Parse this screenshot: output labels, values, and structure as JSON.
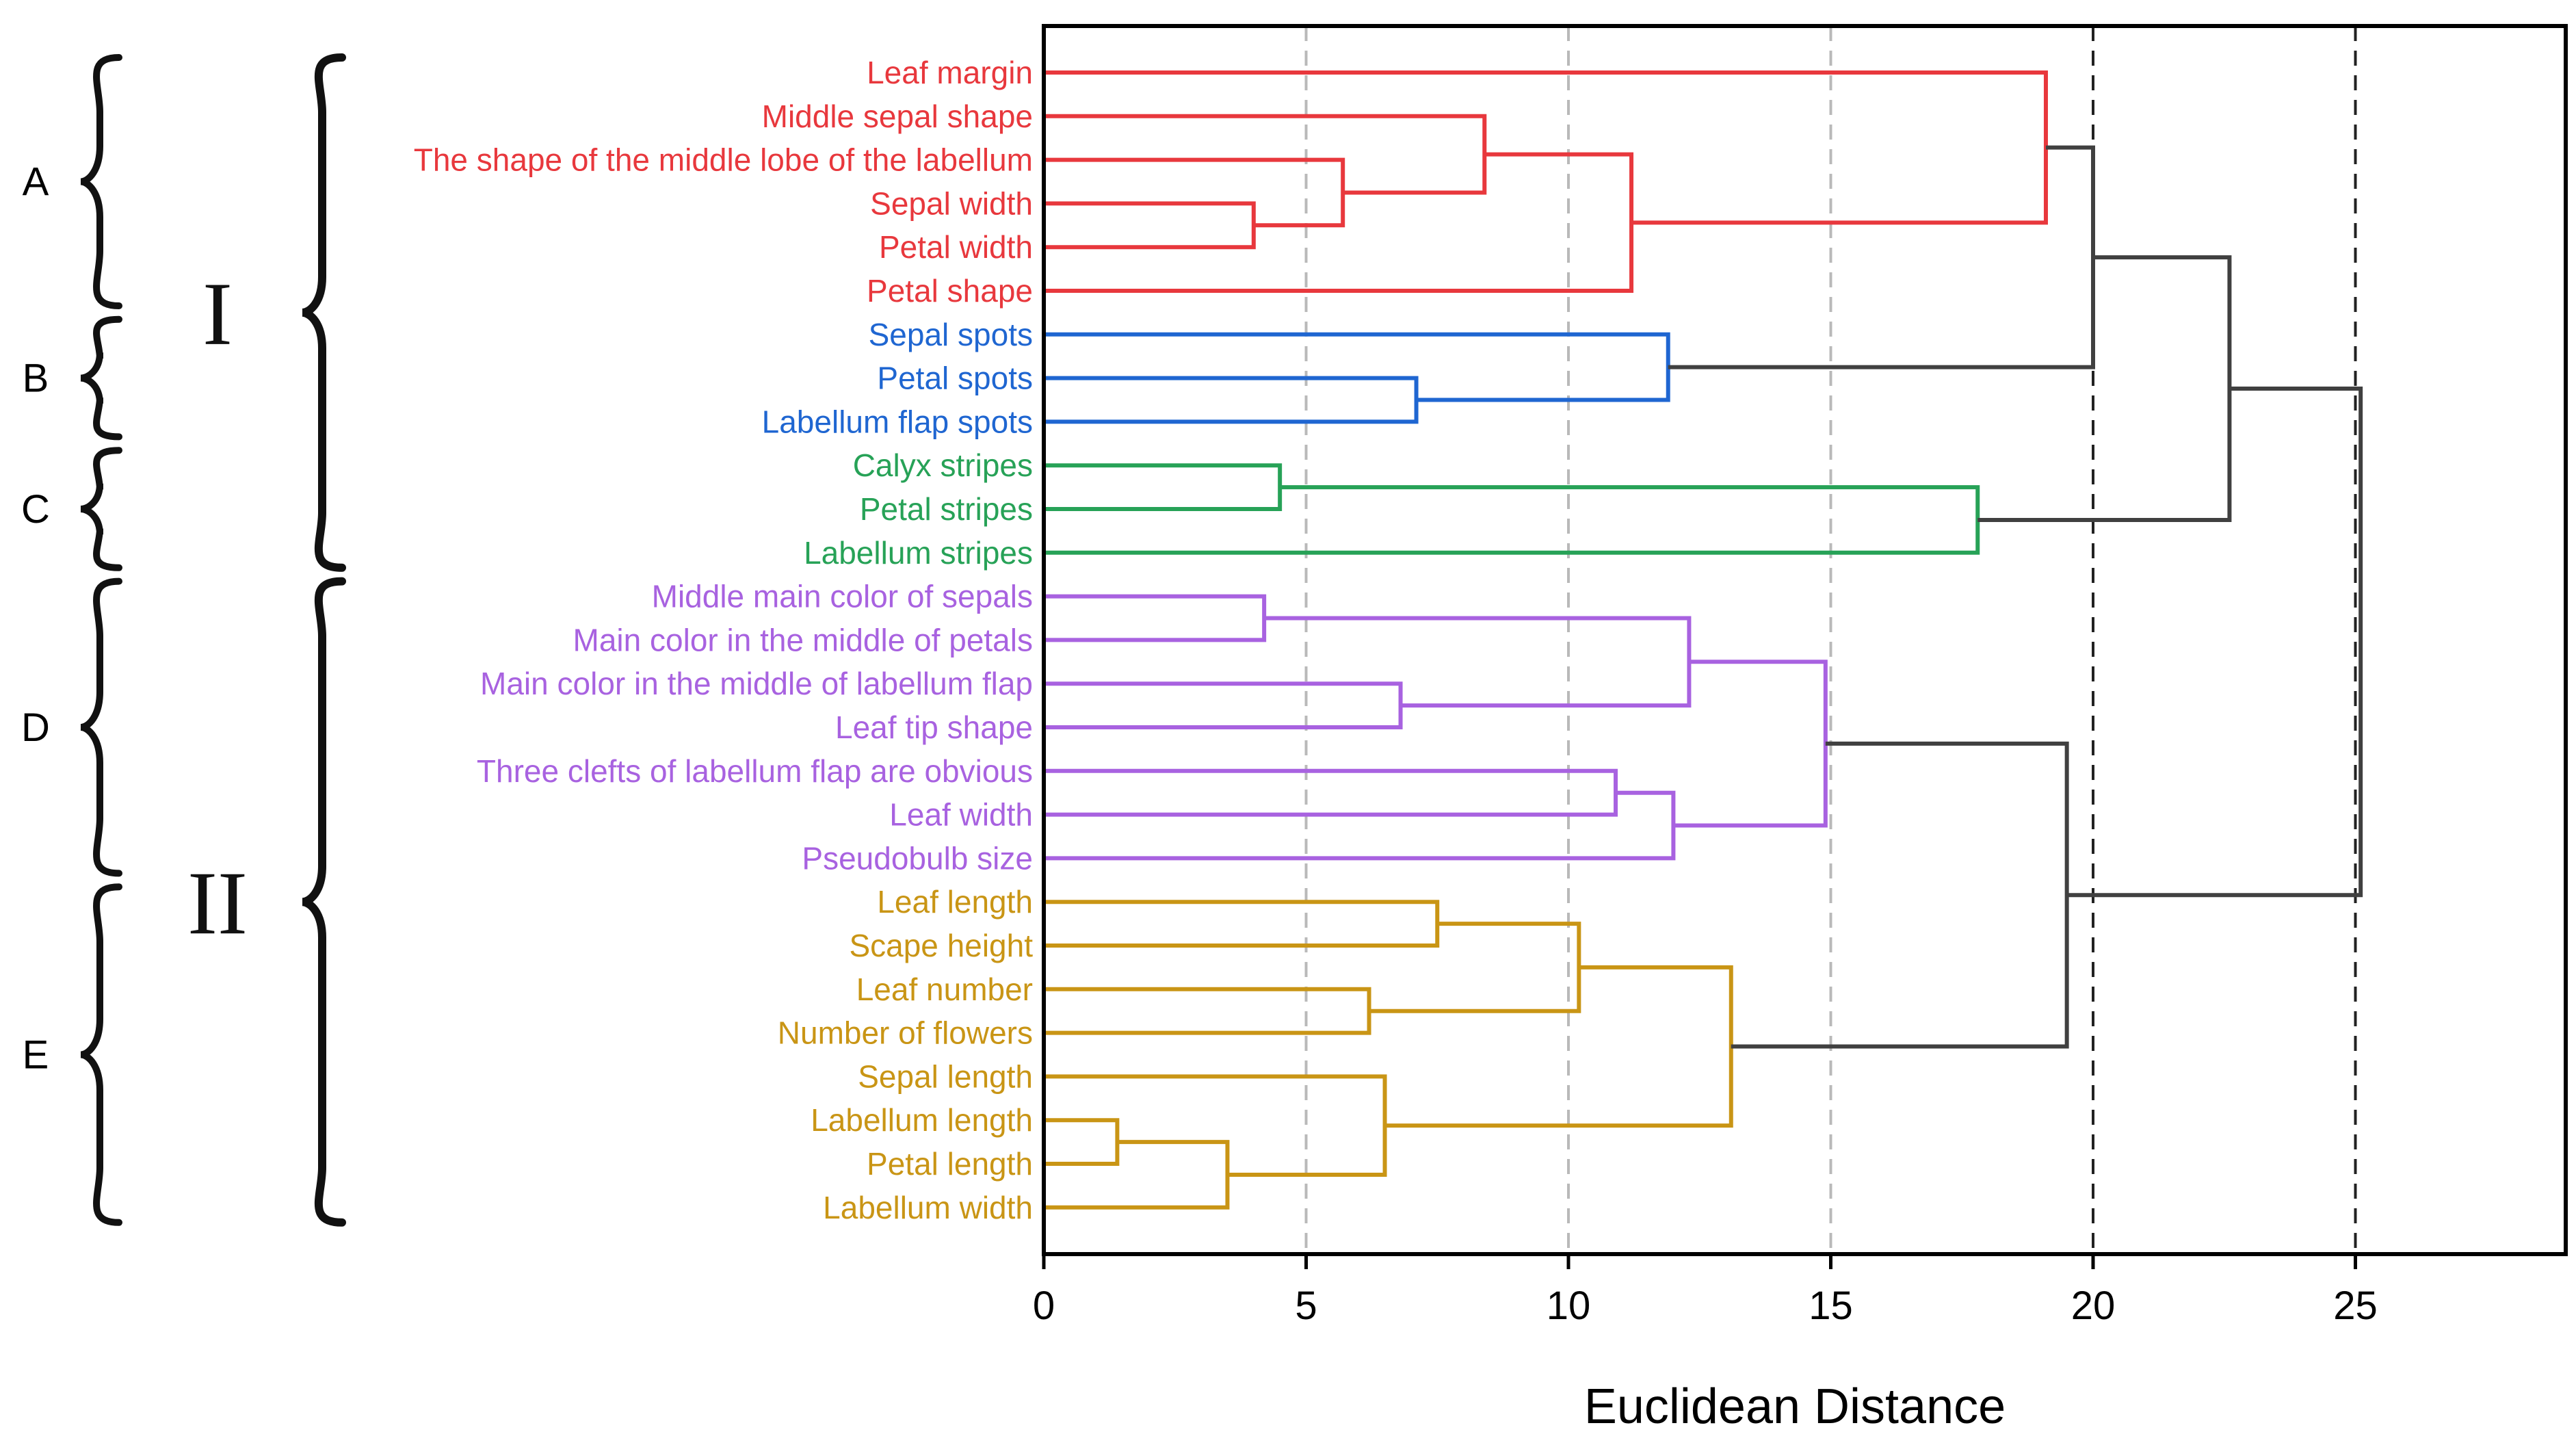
{
  "chart_data": {
    "type": "dendrogram",
    "xlabel": "Euclidean Distance",
    "xlim": [
      0,
      29
    ],
    "xticks": [
      0,
      5,
      10,
      15,
      20,
      25
    ],
    "grid_lines": [
      {
        "x": 5,
        "style": "dashed-gray"
      },
      {
        "x": 10,
        "style": "dashed-gray"
      },
      {
        "x": 15,
        "style": "dashed-gray"
      },
      {
        "x": 20,
        "style": "dashed-black"
      },
      {
        "x": 25,
        "style": "dashed-black"
      }
    ],
    "cluster_colors": {
      "A": "#e8383d",
      "B": "#1f66d1",
      "C": "#27a257",
      "D": "#a862e0",
      "E": "#c99515",
      "link": "#404040"
    },
    "leaves": [
      {
        "label": "Leaf margin",
        "cluster": "A"
      },
      {
        "label": "Middle sepal shape",
        "cluster": "A"
      },
      {
        "label": "The shape of the middle lobe of the labellum",
        "cluster": "A"
      },
      {
        "label": "Sepal width",
        "cluster": "A"
      },
      {
        "label": "Petal width",
        "cluster": "A"
      },
      {
        "label": "Petal shape",
        "cluster": "A"
      },
      {
        "label": "Sepal spots",
        "cluster": "B"
      },
      {
        "label": "Petal spots",
        "cluster": "B"
      },
      {
        "label": "Labellum flap spots",
        "cluster": "B"
      },
      {
        "label": "Calyx stripes",
        "cluster": "C"
      },
      {
        "label": "Petal stripes",
        "cluster": "C"
      },
      {
        "label": "Labellum stripes",
        "cluster": "C"
      },
      {
        "label": "Middle main color of sepals",
        "cluster": "D"
      },
      {
        "label": "Main color in the middle of petals",
        "cluster": "D"
      },
      {
        "label": "Main color in the middle of labellum flap",
        "cluster": "D"
      },
      {
        "label": "Leaf tip shape",
        "cluster": "D"
      },
      {
        "label": "Three clefts of labellum flap are obvious",
        "cluster": "D"
      },
      {
        "label": "Leaf width",
        "cluster": "D"
      },
      {
        "label": "Pseudobulb size",
        "cluster": "D"
      },
      {
        "label": "Leaf length",
        "cluster": "E"
      },
      {
        "label": "Scape height",
        "cluster": "E"
      },
      {
        "label": "Leaf number",
        "cluster": "E"
      },
      {
        "label": "Number of flowers",
        "cluster": "E"
      },
      {
        "label": "Sepal length",
        "cluster": "E"
      },
      {
        "label": "Labellum length",
        "cluster": "E"
      },
      {
        "label": "Petal length",
        "cluster": "E"
      },
      {
        "label": "Labellum width",
        "cluster": "E"
      }
    ],
    "merges": [
      {
        "id": "A1",
        "a": 3,
        "b": 4,
        "height": 4.0,
        "color": "A"
      },
      {
        "id": "A2",
        "a": 2,
        "b": "A1",
        "height": 5.7,
        "color": "A"
      },
      {
        "id": "A3",
        "a": 1,
        "b": "A2",
        "height": 8.4,
        "color": "A"
      },
      {
        "id": "A4",
        "a": "A3",
        "b": 5,
        "height": 11.2,
        "color": "A"
      },
      {
        "id": "A5",
        "a": 0,
        "b": "A4",
        "height": 19.1,
        "color": "A"
      },
      {
        "id": "B1",
        "a": 7,
        "b": 8,
        "height": 7.1,
        "color": "B"
      },
      {
        "id": "B2",
        "a": 6,
        "b": "B1",
        "height": 11.9,
        "color": "B"
      },
      {
        "id": "C1",
        "a": 9,
        "b": 10,
        "height": 4.5,
        "color": "C"
      },
      {
        "id": "C2",
        "a": "C1",
        "b": 11,
        "height": 17.8,
        "color": "C"
      },
      {
        "id": "L1",
        "a": "A5",
        "b": "B2",
        "height": 20.0,
        "color": "link"
      },
      {
        "id": "L2",
        "a": "L1",
        "b": "C2",
        "height": 22.6,
        "color": "link"
      },
      {
        "id": "D1",
        "a": 12,
        "b": 13,
        "height": 4.2,
        "color": "D"
      },
      {
        "id": "D2",
        "a": 14,
        "b": 15,
        "height": 6.8,
        "color": "D"
      },
      {
        "id": "D3",
        "a": "D1",
        "b": "D2",
        "height": 12.3,
        "color": "D"
      },
      {
        "id": "D4",
        "a": 16,
        "b": 17,
        "height": 10.9,
        "color": "D"
      },
      {
        "id": "D5",
        "a": "D4",
        "b": 18,
        "height": 12.0,
        "color": "D"
      },
      {
        "id": "D6",
        "a": "D3",
        "b": "D5",
        "height": 14.9,
        "color": "D"
      },
      {
        "id": "E1",
        "a": 19,
        "b": 20,
        "height": 7.5,
        "color": "E"
      },
      {
        "id": "E2",
        "a": 21,
        "b": 22,
        "height": 6.2,
        "color": "E"
      },
      {
        "id": "E3",
        "a": "E1",
        "b": "E2",
        "height": 10.2,
        "color": "E"
      },
      {
        "id": "E4",
        "a": 24,
        "b": 25,
        "height": 1.4,
        "color": "E"
      },
      {
        "id": "E5",
        "a": "E4",
        "b": 26,
        "height": 3.5,
        "color": "E"
      },
      {
        "id": "E6",
        "a": 23,
        "b": "E5",
        "height": 6.5,
        "color": "E"
      },
      {
        "id": "E7",
        "a": "E3",
        "b": "E6",
        "height": 13.1,
        "color": "E"
      },
      {
        "id": "L3",
        "a": "D6",
        "b": "E7",
        "height": 19.5,
        "color": "link"
      },
      {
        "id": "L4",
        "a": "L2",
        "b": "L3",
        "height": 25.1,
        "color": "link"
      }
    ],
    "groups": [
      {
        "label": "A",
        "from": 0,
        "to": 5
      },
      {
        "label": "B",
        "from": 6,
        "to": 8
      },
      {
        "label": "C",
        "from": 9,
        "to": 11
      },
      {
        "label": "D",
        "from": 12,
        "to": 18
      },
      {
        "label": "E",
        "from": 19,
        "to": 26
      }
    ],
    "supergroups": [
      {
        "label": "I",
        "from": 0,
        "to": 11
      },
      {
        "label": "II",
        "from": 12,
        "to": 26
      }
    ]
  }
}
